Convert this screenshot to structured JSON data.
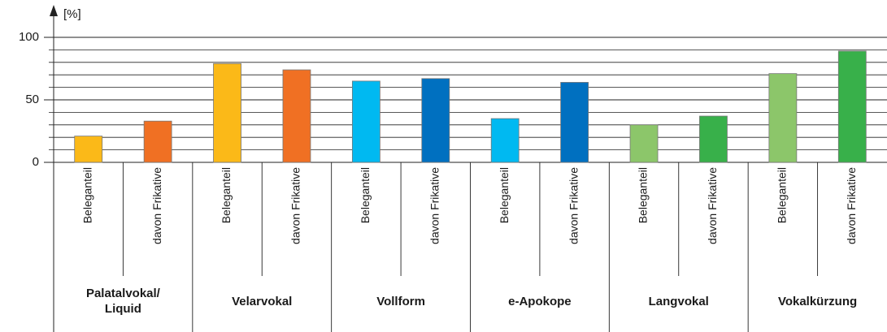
{
  "chart_data": {
    "type": "bar",
    "y_label": "[%]",
    "categories": [
      "Beleganteil",
      "davon Frikative",
      "Beleganteil",
      "davon Frikative",
      "Beleganteil",
      "davon Frikative",
      "Beleganteil",
      "davon Frikative",
      "Beleganteil",
      "davon Frikative",
      "Beleganteil",
      "davon Frikative"
    ],
    "groups": [
      "Palatalvokal/ Liquid",
      "Velarvokal",
      "Vollform",
      "e-Apokope",
      "Langvokal",
      "Vokalkürzung"
    ],
    "values": [
      21,
      33,
      79,
      74,
      65,
      67,
      35,
      64,
      30,
      37,
      71,
      89
    ],
    "colors": [
      "#fbb918",
      "#f07023",
      "#fbb918",
      "#f07023",
      "#00b9f1",
      "#0070c0",
      "#00b9f1",
      "#0070c0",
      "#8cc66a",
      "#38b04a",
      "#8cc66a",
      "#38b04a"
    ],
    "ylim": [
      0,
      100
    ],
    "yticks": [
      0,
      50,
      100
    ],
    "minor_yticks": [
      10,
      20,
      30,
      40,
      60,
      70,
      80,
      90
    ],
    "grid": true
  }
}
